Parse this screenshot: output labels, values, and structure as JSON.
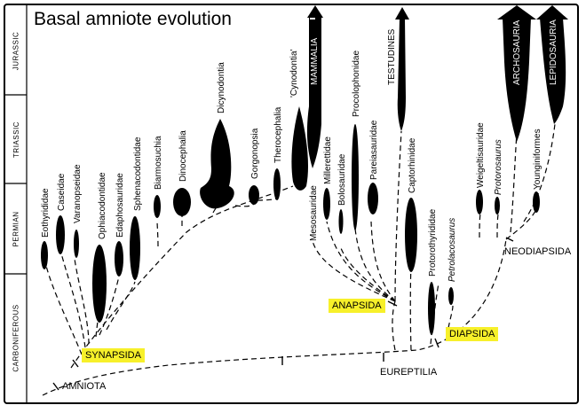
{
  "title": "Basal amniote evolution",
  "periods": [
    "JURASSIC",
    "TRIASSIC",
    "PERMIAN",
    "CARBONIFEROUS"
  ],
  "taxa": {
    "eothyrididae": "Eothyrididae",
    "caseidae": "Caseidae",
    "varanopseidae": "Varanopseidae",
    "ophiacodontidae": "Ophiacodontidae",
    "edaphosauridae": "Edaphosauridae",
    "sphenacodontidae": "Sphenacodontidae",
    "biarmosuchia": "Biarmosuchia",
    "dinocephalia": "Dinocephalia",
    "dicynodontia": "Dicynodontia",
    "gorgonopsia": "Gorgonopsia",
    "therocephalia": "Therocephalia",
    "cynodontia": "'Cynodontia'",
    "mammalia": "MAMMALIA",
    "mesosauridae": "Mesosauridae",
    "millerettidae": "Millerettidae",
    "bolosauridae": "Bolosauridae",
    "procolophonidae": "Procolophonidae",
    "pareiasauridae": "Pareiasauridae",
    "testudines": "TESTUDINES",
    "captorhinidae": "Captorhinidae",
    "protorothyrididae": "Protorothyrididae",
    "petrolacosaurus": "Petrolacosaurus",
    "weigeltisauridae": "Weigeltisauridae",
    "protorosaurus": "Protorosaurus",
    "younginiformes": "Younginiformes",
    "archosauria": "ARCHOSAURIA",
    "lepidosauria": "LEPIDOSAURIA"
  },
  "clades": {
    "synapsida": "SYNAPSIDA",
    "anapsida": "ANAPSIDA",
    "diapsida": "DIAPSIDA",
    "amniota": "AMNIOTA",
    "eureptilia": "EUREPTILIA",
    "neodiapsida": "NEODIAPSIDA"
  },
  "colors": {
    "highlight": "#f7f02a",
    "ink": "#000000"
  }
}
